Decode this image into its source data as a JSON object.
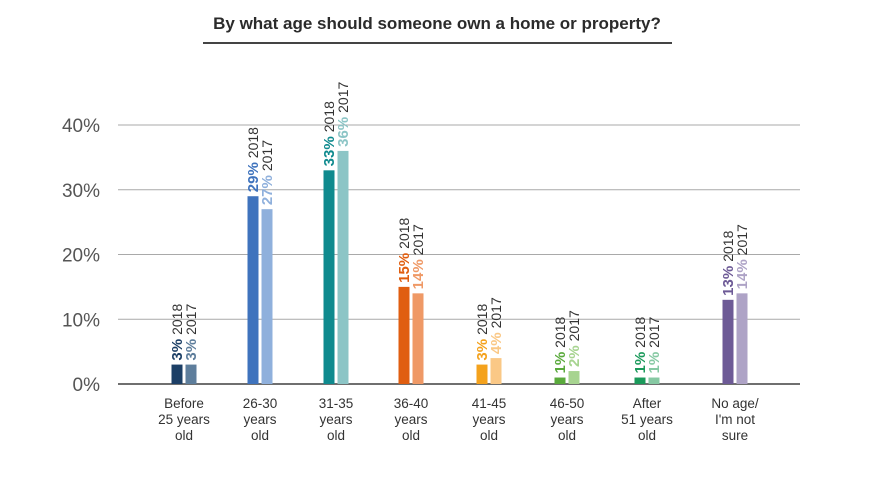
{
  "chart_data": {
    "type": "bar",
    "title": "By what age should someone own a home or property?",
    "categories": [
      [
        "Before",
        "25 years",
        "old"
      ],
      [
        "26-30",
        "years",
        "old"
      ],
      [
        "31-35",
        "years",
        "old"
      ],
      [
        "36-40",
        "years",
        "old"
      ],
      [
        "41-45",
        "years",
        "old"
      ],
      [
        "46-50",
        "years",
        "old"
      ],
      [
        "After",
        "51 years",
        "old"
      ],
      [
        "No age/",
        "I'm not",
        "sure"
      ]
    ],
    "series": [
      {
        "name": "2018",
        "values": [
          3,
          29,
          33,
          15,
          3,
          1,
          1,
          13
        ]
      },
      {
        "name": "2017",
        "values": [
          3,
          27,
          36,
          14,
          4,
          2,
          1,
          14
        ]
      }
    ],
    "value_labels": [
      [
        "3%",
        "3%"
      ],
      [
        "29%",
        "27%"
      ],
      [
        "33%",
        "36%"
      ],
      [
        "15%",
        "14%"
      ],
      [
        "3%",
        "4%"
      ],
      [
        "1%",
        "2%"
      ],
      [
        "1%",
        "1%"
      ],
      [
        "13%",
        "14%"
      ]
    ],
    "yticks": [
      "0%",
      "10%",
      "20%",
      "30%",
      "40%"
    ],
    "ytick_values": [
      0,
      10,
      20,
      30,
      40
    ],
    "ylim": [
      0,
      40
    ],
    "grid": true,
    "colors": [
      [
        "#1c3f66",
        "#5e7e9c"
      ],
      [
        "#3f73bd",
        "#8fb0dc"
      ],
      [
        "#0f8a8e",
        "#8cc5c6"
      ],
      [
        "#e05e10",
        "#ef9966"
      ],
      [
        "#f4a21d",
        "#fac886"
      ],
      [
        "#5aaa3c",
        "#a7d490"
      ],
      [
        "#1b9a5b",
        "#86c9a3"
      ],
      [
        "#6d5a96",
        "#aea3c6"
      ]
    ]
  }
}
